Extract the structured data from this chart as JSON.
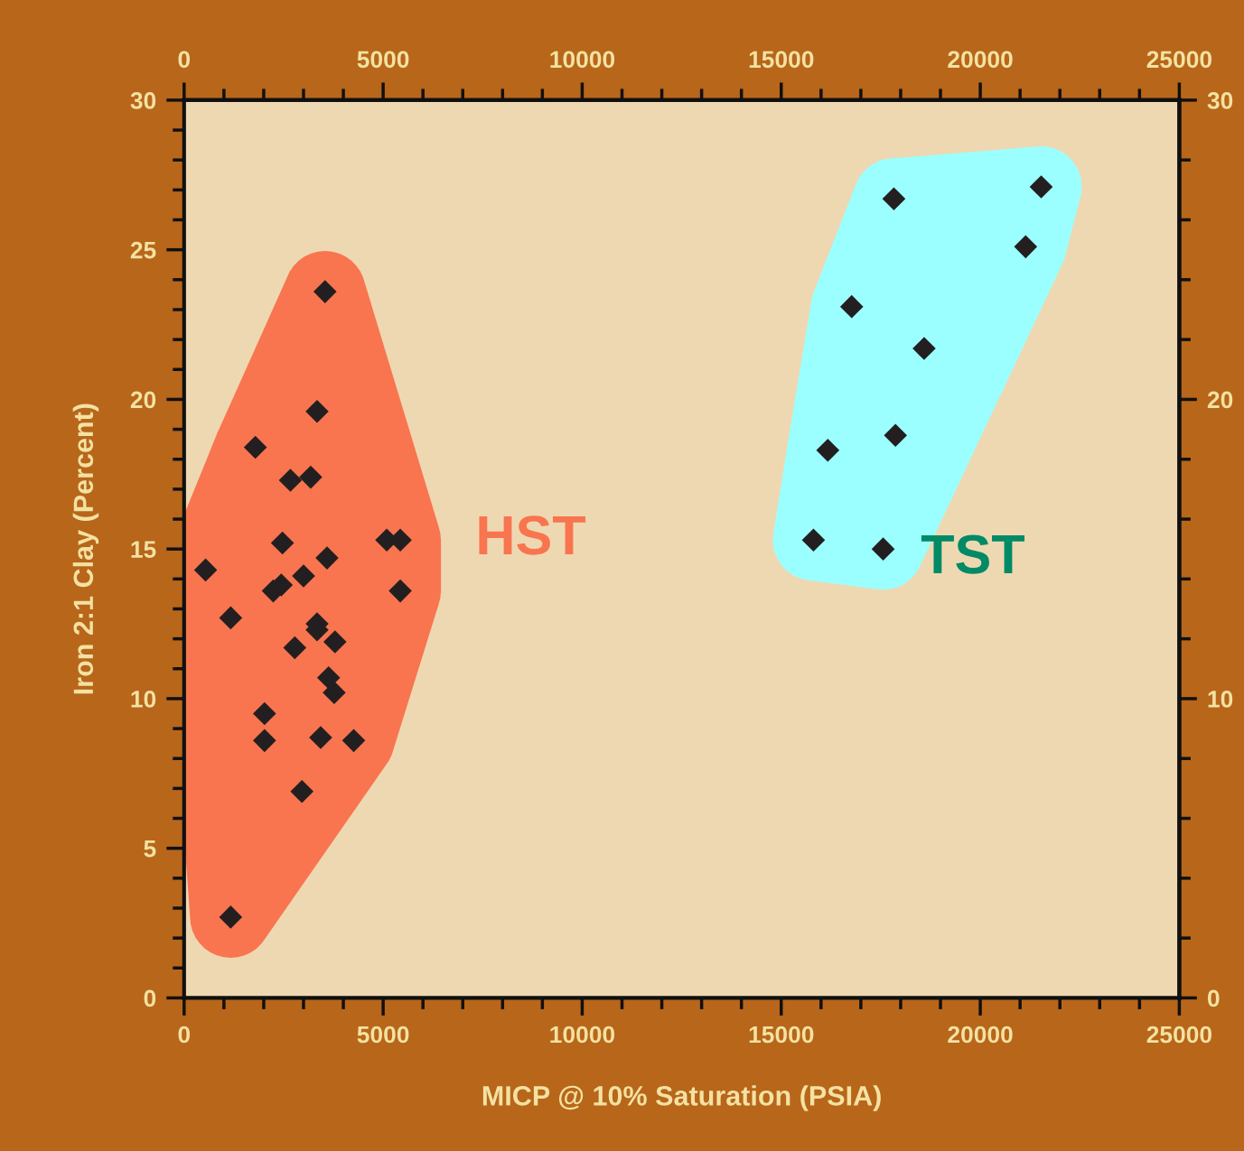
{
  "chart_data": {
    "type": "scatter",
    "xlabel": "MICP @ 10% Saturation (PSIA)",
    "ylabel": "Iron 2:1 Clay (Percent)",
    "xlim": [
      0,
      25000
    ],
    "xticks": [
      0,
      5000,
      10000,
      15000,
      20000,
      25000
    ],
    "x2lim": [
      0,
      25000
    ],
    "x2ticks": [
      0,
      5000,
      10000,
      15000,
      20000,
      25000
    ],
    "ylim": [
      0,
      30
    ],
    "yticks": [
      0,
      5,
      10,
      15,
      20,
      25,
      30
    ],
    "y2lim": [
      0,
      30
    ],
    "y2ticks": [
      0,
      10,
      20,
      30
    ],
    "marker": "diamond",
    "grid": false,
    "legend": false,
    "series": [
      {
        "name": "HST",
        "color": "#231f20",
        "x": [
          540,
          1170,
          1790,
          2470,
          2240,
          2440,
          2670,
          3180,
          3340,
          3540,
          3590,
          3000,
          3340,
          3340,
          2780,
          3790,
          3630,
          3770,
          2020,
          2020,
          3430,
          4260,
          2960,
          1170,
          5090,
          5430,
          5430
        ],
        "values": [
          14.3,
          12.7,
          18.4,
          15.2,
          13.6,
          13.8,
          17.3,
          17.4,
          19.6,
          23.6,
          14.7,
          14.1,
          12.5,
          12.3,
          11.7,
          11.9,
          10.7,
          10.2,
          9.5,
          8.6,
          8.7,
          8.6,
          6.9,
          2.7,
          15.3,
          15.3,
          13.6
        ]
      },
      {
        "name": "TST",
        "color": "#231f20",
        "x": [
          17830,
          21530,
          21140,
          16770,
          18590,
          16170,
          17870,
          15810,
          17560
        ],
        "values": [
          26.7,
          27.1,
          25.1,
          23.1,
          21.7,
          18.3,
          18.8,
          15.3,
          15.0
        ]
      }
    ]
  }
}
